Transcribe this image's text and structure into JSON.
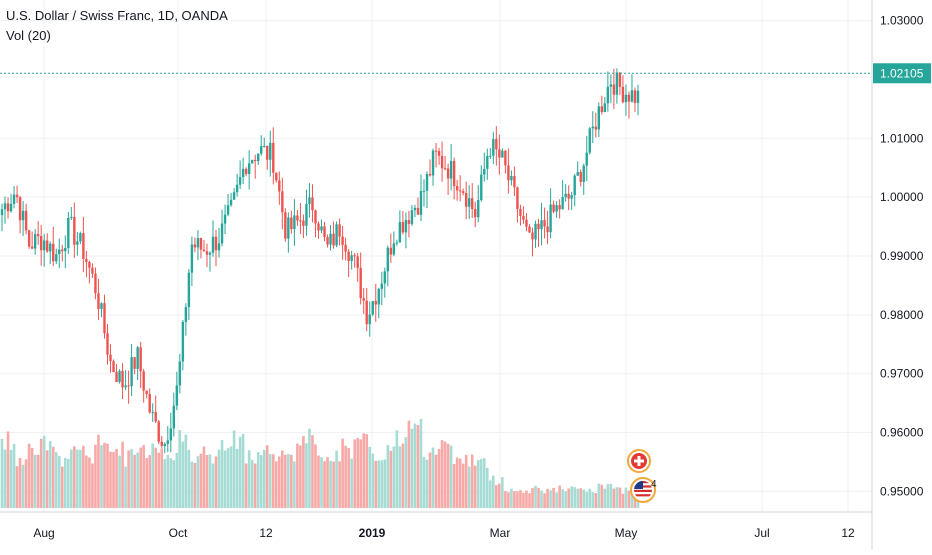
{
  "legend": {
    "title": "U.S. Dollar / Swiss Franc, 1D, OANDA",
    "indicator": "Vol (20)"
  },
  "colors": {
    "up": "#26a69a",
    "down": "#ef5350",
    "volume_up": "#a6dcd4",
    "volume_down": "#f6a9a7",
    "price_line": "#26a69a",
    "grid": "#eef0f3"
  },
  "icons": [
    "swiss-flag-event-icon",
    "us-flag-event-icon"
  ],
  "event_badge": "4",
  "chart_data": {
    "type": "candlestick",
    "symbol": "U.S. Dollar / Swiss Franc",
    "interval": "1D",
    "source": "OANDA",
    "current_price": "1.02105",
    "y_ticks": [
      "1.03000",
      "1.01000",
      "1.00000",
      "0.99000",
      "0.98000",
      "0.97000",
      "0.96000",
      "0.95000"
    ],
    "ylim": [
      0.9465,
      1.0335
    ],
    "x_ticks": [
      "Aug",
      "Oct",
      "12",
      "2019",
      "Mar",
      "May",
      "Jul",
      "12"
    ],
    "grid": true,
    "series_anchor_closes": [
      0.998,
      1.001,
      0.992,
      0.993,
      0.99,
      0.995,
      0.991,
      0.984,
      0.972,
      0.968,
      0.973,
      0.963,
      0.958,
      0.968,
      0.992,
      0.991,
      0.993,
      0.998,
      1.006,
      1.008,
      1.007,
      0.994,
      0.996,
      0.999,
      0.991,
      0.995,
      0.989,
      0.98,
      0.986,
      0.994,
      0.997,
      1.0,
      1.007,
      1.005,
      1.002,
      0.997,
      1.009,
      1.006,
      0.999,
      0.992,
      0.995,
      0.998,
      1.0,
      1.006,
      1.014,
      1.02,
      1.018,
      1.017
    ],
    "volume_series": {
      "name": "Vol (20)",
      "values": [
        0.72,
        0.55,
        0.64,
        0.7,
        0.52,
        0.66,
        0.58,
        0.78,
        0.61,
        0.55,
        0.63,
        0.69,
        0.57,
        0.74,
        0.6,
        0.52,
        0.66,
        0.71,
        0.59,
        0.63,
        0.54,
        0.62,
        0.76,
        0.58,
        0.6,
        0.64,
        0.7,
        0.56,
        0.61,
        0.75,
        1.0,
        0.62,
        0.66,
        0.58,
        0.52,
        0.48,
        0.3,
        0.2,
        0.18,
        0.22,
        0.19,
        0.21,
        0.2,
        0.18,
        0.23,
        0.19,
        0.21,
        0.25
      ]
    }
  }
}
